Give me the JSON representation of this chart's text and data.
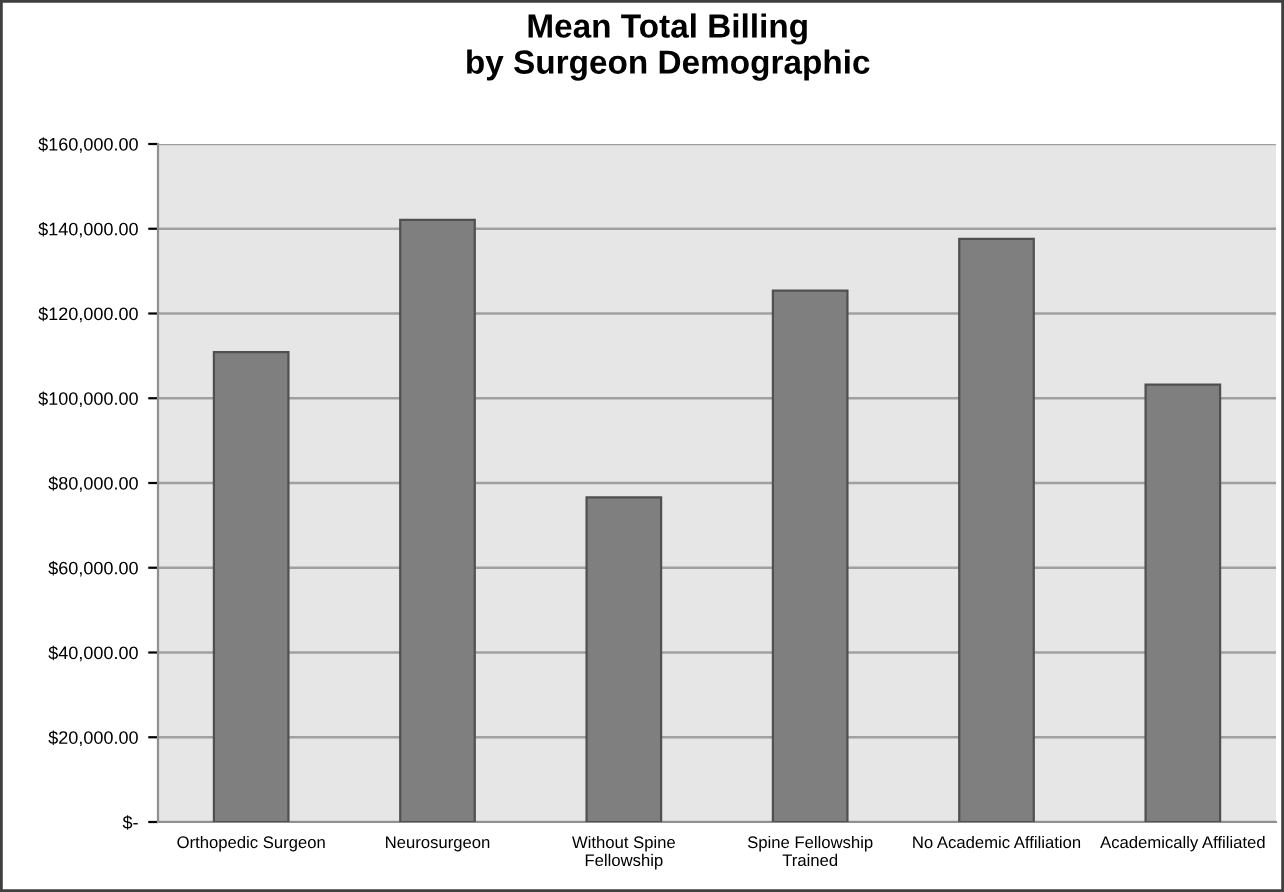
{
  "chart_data": {
    "type": "bar",
    "title": "Mean Total Billing\nby Surgeon Demographic",
    "categories": [
      "Orthopedic Surgeon",
      "Neurosurgeon",
      "Without Spine\nFellowship",
      "Spine Fellowship\nTrained",
      "No Academic Affiliation",
      "Academically Affiliated"
    ],
    "values": [
      110900,
      142100,
      76600,
      125400,
      137600,
      103200
    ],
    "color": "#7f7f7f",
    "ylim": [
      0,
      160000
    ],
    "yticks": [
      {
        "value": 0,
        "label": "$-"
      },
      {
        "value": 20000,
        "label": "$20,000.00"
      },
      {
        "value": 40000,
        "label": "$40,000.00"
      },
      {
        "value": 60000,
        "label": "$60,000.00"
      },
      {
        "value": 80000,
        "label": "$80,000.00"
      },
      {
        "value": 100000,
        "label": "$100,000.00"
      },
      {
        "value": 120000,
        "label": "$120,000.00"
      },
      {
        "value": 140000,
        "label": "$140,000.00"
      },
      {
        "value": 160000,
        "label": "$160,000.00"
      }
    ],
    "grid": "y"
  }
}
